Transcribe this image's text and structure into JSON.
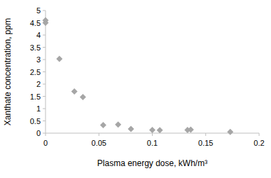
{
  "chart_data": {
    "type": "scatter",
    "x_label": "Plasma energy dose, kWh/m³",
    "y_label": "Xanthate concentration, ppm",
    "x": [
      0,
      0,
      0.013,
      0.027,
      0.035,
      0.054,
      0.068,
      0.08,
      0.1,
      0.107,
      0.133,
      0.136,
      0.173
    ],
    "values": [
      4.6,
      4.5,
      3.03,
      1.7,
      1.47,
      0.33,
      0.35,
      0.17,
      0.13,
      0.12,
      0.13,
      0.14,
      0.05
    ],
    "color": "#a6a6a6",
    "marker": "diamond",
    "xlim": [
      0,
      0.2
    ],
    "xticks": [
      0,
      0.05,
      0.1,
      0.15,
      0.2
    ],
    "ylim": [
      0,
      5
    ],
    "yticks": [
      0,
      0.5,
      1,
      1.5,
      2,
      2.5,
      3,
      3.5,
      4,
      4.5,
      5
    ],
    "grid": false
  }
}
